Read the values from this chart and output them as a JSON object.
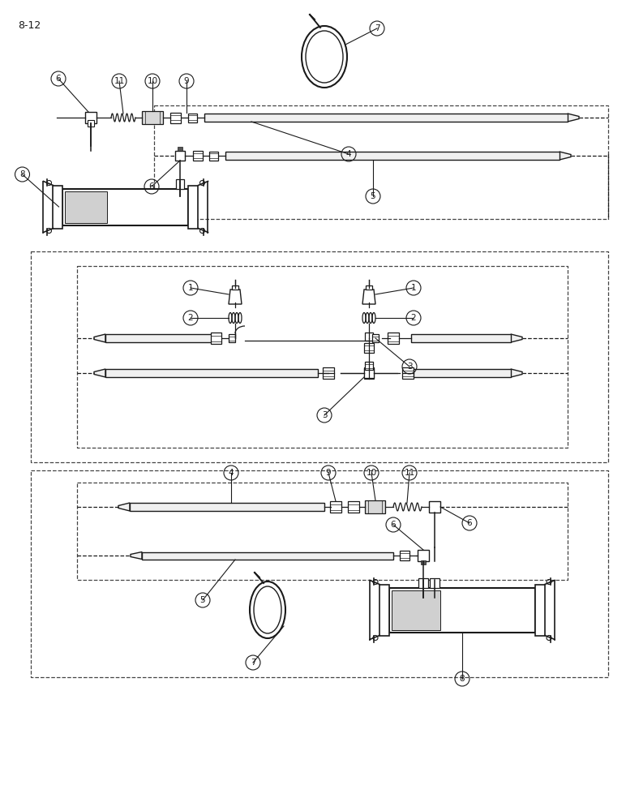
{
  "page_label": "8-12",
  "bg_color": "#ffffff",
  "line_color": "#1a1a1a",
  "fig_width": 7.72,
  "fig_height": 10.0,
  "dpi": 100
}
